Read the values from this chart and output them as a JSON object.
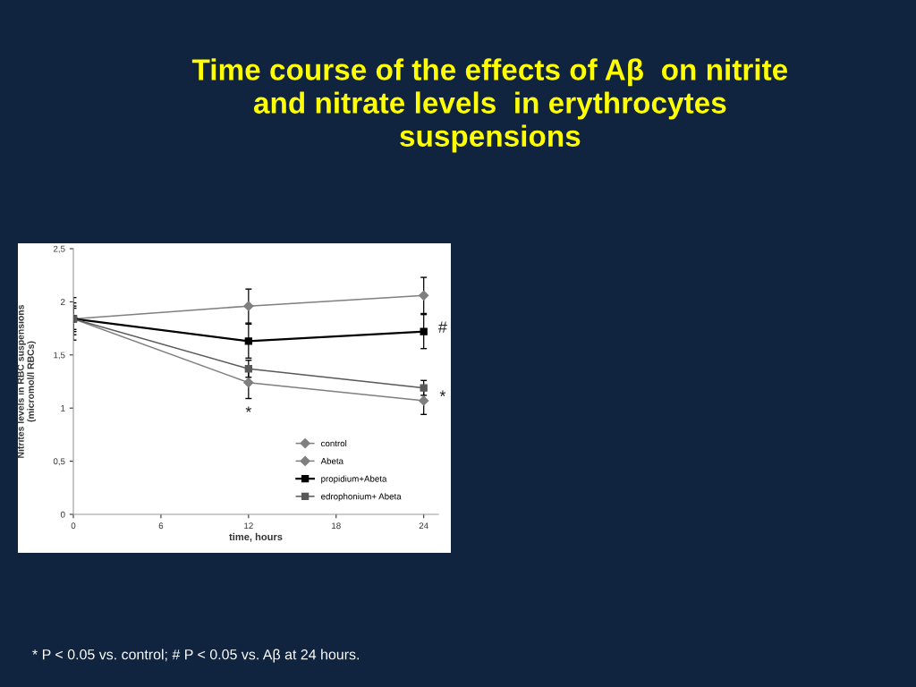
{
  "chart_data": {
    "type": "line",
    "title": "Time course of the effects of Aβ  on nitrite\nand nitrate levels  in erythrocytes\nsuspensions",
    "xlabel": "time, hours",
    "ylabel": "Nitrites levels in RBC suspensions\n(micromol/l RBCs)",
    "x": [
      0,
      12,
      24
    ],
    "series": [
      {
        "name": "control",
        "color": "#7f7f7f",
        "marker": "diamond",
        "values": [
          1.84,
          1.96,
          2.06
        ],
        "errors": [
          0.2,
          0.16,
          0.17
        ]
      },
      {
        "name": "Abeta",
        "color": "#7f7f7f",
        "marker": "diamond",
        "values": [
          1.84,
          1.24,
          1.07
        ],
        "errors": [
          0.12,
          0.15,
          0.13
        ]
      },
      {
        "name": "propidium+Abeta",
        "color": "#000000",
        "marker": "square",
        "values": [
          1.84,
          1.63,
          1.72
        ],
        "errors": [
          0.15,
          0.16,
          0.16
        ]
      },
      {
        "name": "edrophonium+ Abeta",
        "color": "#595959",
        "marker": "square",
        "values": [
          1.84,
          1.37,
          1.19
        ],
        "errors": [
          0.1,
          0.08,
          0.07
        ]
      }
    ],
    "xlim": [
      0,
      25
    ],
    "ylim": [
      0,
      2.5
    ],
    "xticks": [
      0,
      6,
      12,
      18,
      24
    ],
    "yticks": [
      0,
      {
        "value": 0.5,
        "label": "0,5"
      },
      1,
      {
        "value": 1.5,
        "label": "1,5"
      },
      2,
      {
        "value": 2.5,
        "label": "2,5"
      }
    ],
    "grid": false,
    "legend": "lower right",
    "annotations": [
      "*",
      "#",
      "*",
      "* P < 0.05 vs. control; # P < 0.05 vs. Aβ at 24 hours."
    ]
  }
}
